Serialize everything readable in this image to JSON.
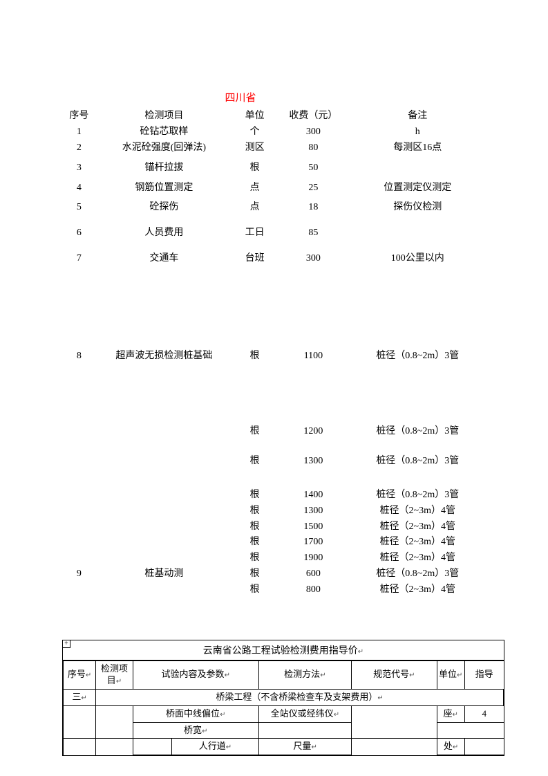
{
  "title": "四川省",
  "title_color": "#ff0000",
  "header": {
    "seq": "序号",
    "item": "检测项目",
    "unit": "单位",
    "fee": "收费（元）",
    "note": "备注"
  },
  "rows": [
    {
      "seq": "1",
      "item": "砼钻芯取样",
      "unit": "个",
      "fee": "300",
      "note": "h",
      "gap": 0
    },
    {
      "seq": "2",
      "item": "水泥砼强度(回弹法)",
      "unit": "测区",
      "fee": "80",
      "note": "每测区16点",
      "gap": 0
    },
    {
      "seq": "3",
      "item": "锚杆拉拔",
      "unit": "根",
      "fee": "50",
      "note": "",
      "gap": 1
    },
    {
      "seq": "4",
      "item": "钢筋位置测定",
      "unit": "点",
      "fee": "25",
      "note": "位置测定仪测定",
      "gap": 1
    },
    {
      "seq": "5",
      "item": "砼探伤",
      "unit": "点",
      "fee": "18",
      "note": "探伤仪检测",
      "gap": 1
    },
    {
      "seq": "6",
      "item": "人员费用",
      "unit": "工日",
      "fee": "85",
      "note": "",
      "gap": 2
    },
    {
      "seq": "7",
      "item": "交通车",
      "unit": "台班",
      "fee": "300",
      "note": "100公里以内",
      "gap": 2
    }
  ],
  "block8": {
    "seq": "8",
    "item": "超声波无损检测桩基础",
    "first": {
      "unit": "根",
      "fee": "1100",
      "note": "桩径（0.8~2m）3管"
    },
    "mid": [
      {
        "unit": "根",
        "fee": "1200",
        "note": "桩径（0.8~2m）3管"
      },
      {
        "unit": "根",
        "fee": "1300",
        "note": "桩径（0.8~2m）3管"
      }
    ],
    "tail": [
      {
        "unit": "根",
        "fee": "1400",
        "note": "桩径（0.8~2m）3管"
      },
      {
        "unit": "根",
        "fee": "1300",
        "note": "桩径（2~3m）4管"
      },
      {
        "unit": "根",
        "fee": "1500",
        "note": "桩径（2~3m）4管"
      },
      {
        "unit": "根",
        "fee": "1700",
        "note": "桩径（2~3m）4管"
      },
      {
        "unit": "根",
        "fee": "1900",
        "note": "桩径（2~3m）4管"
      }
    ]
  },
  "block9": {
    "seq": "9",
    "item": "桩基动测",
    "rows": [
      {
        "unit": "根",
        "fee": "600",
        "note": "桩径（0.8~2m）3管"
      },
      {
        "unit": "根",
        "fee": "800",
        "note": "桩径（2~3m）4管"
      }
    ]
  },
  "yunnan": {
    "title": "云南省公路工程试验检测费用指导价",
    "expand_symbol": "+",
    "enter_symbol": "↵",
    "header": {
      "seq": "序号",
      "item": "检测项目",
      "content": "试验内容及参数",
      "method": "检测方法",
      "spec": "规范代号",
      "unit": "单位",
      "price": "指导"
    },
    "section": {
      "no": "三",
      "label": "桥梁工程（不含桥梁检查车及支架费用）"
    },
    "rows": [
      {
        "content": "桥面中线偏位",
        "method": "全站仪或经纬仪",
        "unit": "座",
        "price": "4"
      },
      {
        "group": "桥宽",
        "content": "人行道",
        "method": "尺量",
        "unit": "处",
        "price": ""
      }
    ]
  }
}
